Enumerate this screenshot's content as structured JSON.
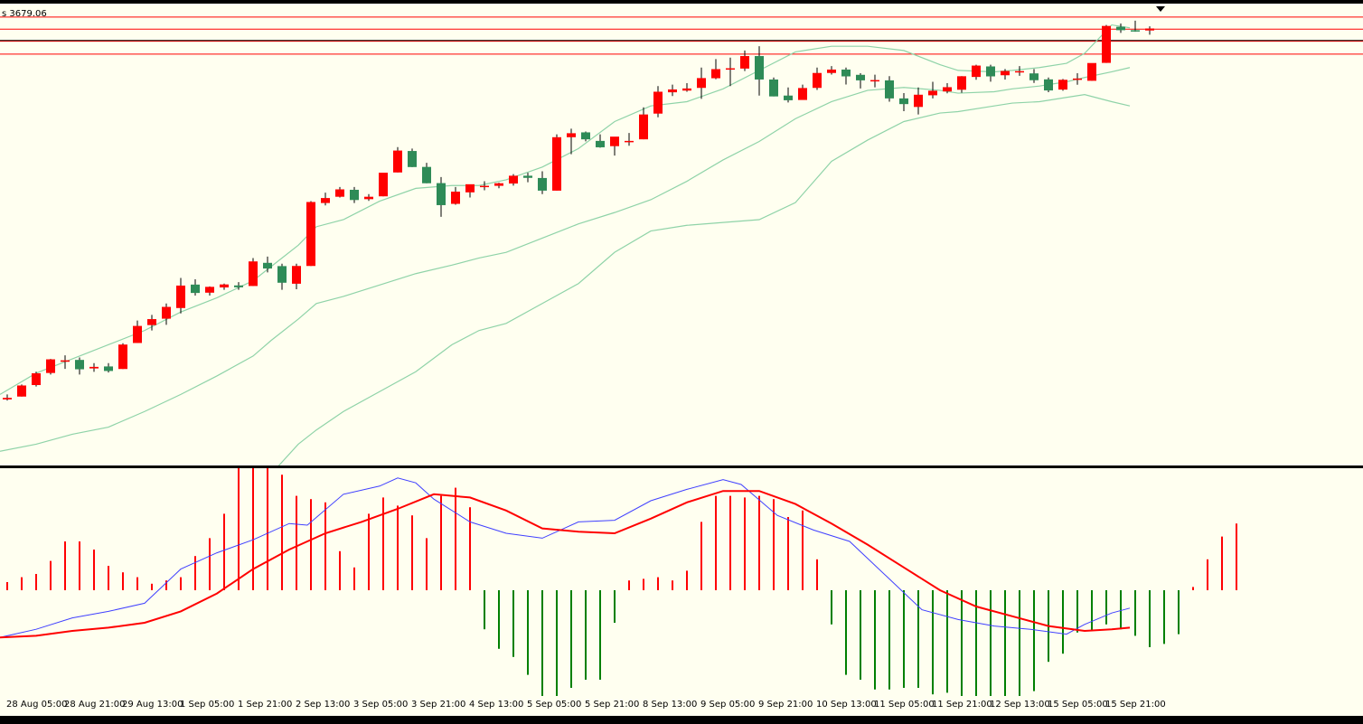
{
  "price_readout": "s 3679.06",
  "colors": {
    "background": "#fffff0",
    "bull_candle": "#ff0000",
    "bear_candle": "#2e8b57",
    "bollinger": "#8fd3a8",
    "level_lines": "#ff0000",
    "current_price_line": "#000000",
    "macd_line": "#4040ff",
    "signal_line": "#ff0000",
    "histogram_positive": "#ff0000",
    "histogram_negative": "#008000"
  },
  "icons": [
    "scroll-position-marker-icon"
  ],
  "time_axis": {
    "labels": [
      "28 Aug 05:00",
      "28 Aug 21:00",
      "29 Aug 13:00",
      "1 Sep 05:00",
      "1 Sep 21:00",
      "2 Sep 13:00",
      "3 Sep 05:00",
      "3 Sep 21:00",
      "4 Sep 13:00",
      "5 Sep 05:00",
      "5 Sep 21:00",
      "8 Sep 13:00",
      "9 Sep 05:00",
      "9 Sep 21:00",
      "10 Sep 13:00",
      "11 Sep 05:00",
      "11 Sep 21:00",
      "12 Sep 13:00",
      "15 Sep 05:00",
      "15 Sep 21:00"
    ]
  },
  "chart_data": {
    "type": "candlestick",
    "price_range": [
      3380,
      3705
    ],
    "horizontal_levels": [
      3695.5,
      3687.0,
      3678.5,
      3669.5
    ],
    "current_price": 3679.06,
    "candles": [
      [
        3426.5,
        3430,
        3427.6,
        3425.7
      ],
      [
        3428.5,
        3437,
        3436.3,
        3428.5
      ],
      [
        3436.6,
        3446,
        3444.9,
        3435.6
      ],
      [
        3445.1,
        3455,
        3454.7,
        3444
      ],
      [
        3453,
        3457.5,
        3454,
        3448
      ],
      [
        3454.3,
        3456,
        3447.7,
        3444
      ],
      [
        3448.3,
        3452,
        3449.4,
        3445.9
      ],
      [
        3449.7,
        3452,
        3446.5,
        3445.4
      ],
      [
        3447.9,
        3466,
        3465.1,
        3447.9
      ],
      [
        3466.2,
        3482,
        3478.2,
        3466.2
      ],
      [
        3478.8,
        3486,
        3483,
        3475
      ],
      [
        3483.3,
        3494,
        3491.6,
        3479
      ],
      [
        3490.8,
        3512,
        3506.6,
        3487
      ],
      [
        3507.3,
        3511,
        3501.4,
        3499.6
      ],
      [
        3501.6,
        3506,
        3505.7,
        3499.6
      ],
      [
        3505.3,
        3508,
        3507.4,
        3503.6
      ],
      [
        3506.7,
        3509,
        3505.4,
        3503.6
      ],
      [
        3506.3,
        3526,
        3523.6,
        3506.3
      ],
      [
        3522.6,
        3527,
        3518.6,
        3515.9
      ],
      [
        3520.3,
        3522,
        3508.6,
        3503.6
      ],
      [
        3507.9,
        3522,
        3520.4,
        3504
      ],
      [
        3520.4,
        3566,
        3565.4,
        3520.4
      ],
      [
        3564.7,
        3572,
        3568.2,
        3563
      ],
      [
        3569.1,
        3576,
        3574.3,
        3568.6
      ],
      [
        3574,
        3576,
        3566.8,
        3564.7
      ],
      [
        3567.4,
        3571,
        3569.1,
        3566.2
      ],
      [
        3569.4,
        3585,
        3586,
        3569.4
      ],
      [
        3586.2,
        3604,
        3601.6,
        3586.2
      ],
      [
        3601.3,
        3603,
        3590,
        3590
      ],
      [
        3590.1,
        3593,
        3578.6,
        3578.6
      ],
      [
        3578.7,
        3583,
        3563.2,
        3555
      ],
      [
        3564.1,
        3576,
        3572.7,
        3563.5
      ],
      [
        3572.2,
        3574,
        3577.9,
        3568.6
      ],
      [
        3576.1,
        3580,
        3576.8,
        3573.7
      ],
      [
        3576.8,
        3579,
        3578.6,
        3575.1
      ],
      [
        3578.4,
        3585,
        3583.9,
        3576.9
      ],
      [
        3583.9,
        3586,
        3582.4,
        3579.3
      ],
      [
        3582.3,
        3587,
        3573.4,
        3571
      ],
      [
        3573.4,
        3613,
        3611,
        3573.4
      ],
      [
        3611,
        3617,
        3613.8,
        3599
      ],
      [
        3614.4,
        3615,
        3609.5,
        3608.1
      ],
      [
        3608.4,
        3613,
        3603.9,
        3603.6
      ],
      [
        3604.7,
        3609,
        3611.4,
        3598.1
      ],
      [
        3608.4,
        3614,
        3608.4,
        3605
      ],
      [
        3609.5,
        3632,
        3627,
        3609.5
      ],
      [
        3627.6,
        3647,
        3643,
        3625
      ],
      [
        3642.6,
        3648,
        3644.6,
        3640
      ],
      [
        3643.8,
        3649,
        3645.3,
        3643
      ],
      [
        3645.7,
        3660,
        3652.6,
        3638
      ],
      [
        3652.5,
        3666,
        3658.9,
        3651.8
      ],
      [
        3658.8,
        3667,
        3659.5,
        3647
      ],
      [
        3659.3,
        3672,
        3668.1,
        3657.5
      ],
      [
        3668.1,
        3675,
        3651.6,
        3640.3
      ],
      [
        3651.6,
        3653,
        3639.7,
        3639.7
      ],
      [
        3640.3,
        3646,
        3637,
        3635.4
      ],
      [
        3637.2,
        3648,
        3645.6,
        3639.8
      ],
      [
        3645.7,
        3660,
        3656.2,
        3644.3
      ],
      [
        3656.2,
        3661,
        3658.6,
        3655.1
      ],
      [
        3658.6,
        3660,
        3653.8,
        3648.1
      ],
      [
        3654.9,
        3656,
        3651,
        3645.3
      ],
      [
        3651,
        3655,
        3651.2,
        3646.1
      ],
      [
        3651,
        3654,
        3638.3,
        3636
      ],
      [
        3638.3,
        3642,
        3634.3,
        3629.3
      ],
      [
        3632.3,
        3646,
        3640.9,
        3627
      ],
      [
        3640.5,
        3650,
        3643.7,
        3638.3
      ],
      [
        3643.2,
        3649,
        3646.2,
        3641.9
      ],
      [
        3644.4,
        3654,
        3653.9,
        3642.3
      ],
      [
        3653.4,
        3662,
        3661.4,
        3651.4
      ],
      [
        3660.8,
        3662,
        3653.8,
        3650.1
      ],
      [
        3654.6,
        3659,
        3657.6,
        3651.6
      ],
      [
        3656.7,
        3661,
        3657.5,
        3654.2
      ],
      [
        3655.9,
        3659,
        3651.1,
        3649.2
      ],
      [
        3651.7,
        3653,
        3643.9,
        3642.7
      ],
      [
        3644.5,
        3652,
        3651.4,
        3643.7
      ],
      [
        3651.5,
        3656,
        3652.3,
        3647.9
      ],
      [
        3650.7,
        3663,
        3663.2,
        3650.7
      ],
      [
        3663.3,
        3690,
        3689.3,
        3663.3
      ],
      [
        3688.7,
        3691,
        3686.3,
        3684.4
      ],
      [
        3686.3,
        3693,
        3686.1,
        3685.2
      ],
      [
        3686.1,
        3689,
        3687.5,
        3683.1
      ]
    ],
    "bollinger_bands": {
      "upper": [
        [
          0,
          3430
        ],
        [
          20,
          3445
        ],
        [
          40,
          3455
        ],
        [
          60,
          3465
        ],
        [
          80,
          3475
        ],
        [
          100,
          3488
        ],
        [
          120,
          3498
        ],
        [
          140,
          3510
        ],
        [
          150,
          3520
        ],
        [
          165,
          3535
        ],
        [
          175,
          3548
        ],
        [
          190,
          3553
        ],
        [
          210,
          3566
        ],
        [
          230,
          3575
        ],
        [
          250,
          3577
        ],
        [
          265,
          3577
        ],
        [
          280,
          3581
        ],
        [
          300,
          3590
        ],
        [
          320,
          3603
        ],
        [
          340,
          3622
        ],
        [
          360,
          3633
        ],
        [
          380,
          3636
        ],
        [
          400,
          3645
        ],
        [
          420,
          3658
        ],
        [
          440,
          3671
        ],
        [
          460,
          3675
        ],
        [
          480,
          3675
        ],
        [
          500,
          3672
        ],
        [
          520,
          3662
        ],
        [
          530,
          3658
        ],
        [
          550,
          3657
        ],
        [
          560,
          3658
        ],
        [
          575,
          3660
        ],
        [
          590,
          3663
        ],
        [
          600,
          3670
        ],
        [
          615,
          3690
        ],
        [
          625,
          3688
        ]
      ],
      "middle": [
        [
          0,
          3390
        ],
        [
          20,
          3395
        ],
        [
          40,
          3402
        ],
        [
          60,
          3407
        ],
        [
          80,
          3418
        ],
        [
          100,
          3430
        ],
        [
          120,
          3443
        ],
        [
          140,
          3457
        ],
        [
          150,
          3468
        ],
        [
          165,
          3483
        ],
        [
          175,
          3494
        ],
        [
          190,
          3499
        ],
        [
          210,
          3507
        ],
        [
          230,
          3515
        ],
        [
          250,
          3521
        ],
        [
          265,
          3526
        ],
        [
          280,
          3530
        ],
        [
          300,
          3540
        ],
        [
          320,
          3550
        ],
        [
          340,
          3558
        ],
        [
          360,
          3567
        ],
        [
          380,
          3580
        ],
        [
          400,
          3595
        ],
        [
          420,
          3608
        ],
        [
          440,
          3624
        ],
        [
          460,
          3636
        ],
        [
          480,
          3644
        ],
        [
          500,
          3646
        ],
        [
          520,
          3644
        ],
        [
          530,
          3642
        ],
        [
          550,
          3643
        ],
        [
          560,
          3645
        ],
        [
          575,
          3647
        ],
        [
          590,
          3650
        ],
        [
          600,
          3653
        ],
        [
          615,
          3657
        ],
        [
          625,
          3660
        ]
      ],
      "lower": [
        [
          0,
          3364
        ],
        [
          20,
          3367
        ],
        [
          40,
          3369
        ],
        [
          60,
          3368
        ],
        [
          80,
          3370
        ],
        [
          100,
          3363
        ],
        [
          120,
          3365
        ],
        [
          140,
          3370
        ],
        [
          150,
          3374
        ],
        [
          165,
          3395
        ],
        [
          175,
          3405
        ],
        [
          190,
          3418
        ],
        [
          210,
          3432
        ],
        [
          230,
          3446
        ],
        [
          250,
          3465
        ],
        [
          265,
          3475
        ],
        [
          280,
          3480
        ],
        [
          300,
          3494
        ],
        [
          320,
          3508
        ],
        [
          340,
          3530
        ],
        [
          360,
          3545
        ],
        [
          380,
          3549
        ],
        [
          400,
          3551
        ],
        [
          420,
          3553
        ],
        [
          440,
          3565
        ],
        [
          460,
          3594
        ],
        [
          480,
          3609
        ],
        [
          500,
          3622
        ],
        [
          520,
          3628
        ],
        [
          530,
          3629
        ],
        [
          550,
          3633
        ],
        [
          560,
          3635
        ],
        [
          575,
          3636
        ],
        [
          590,
          3639
        ],
        [
          600,
          3641
        ],
        [
          615,
          3636
        ],
        [
          625,
          3633
        ]
      ]
    },
    "oscillator": {
      "range": [
        -6.5,
        7.5
      ],
      "macd": [
        [
          0,
          -2.9
        ],
        [
          20,
          -2.4
        ],
        [
          40,
          -1.7
        ],
        [
          60,
          -1.3
        ],
        [
          80,
          -0.8
        ],
        [
          100,
          1.3
        ],
        [
          120,
          2.3
        ],
        [
          140,
          3.1
        ],
        [
          160,
          4.1
        ],
        [
          170,
          4.0
        ],
        [
          190,
          5.9
        ],
        [
          210,
          6.4
        ],
        [
          220,
          6.9
        ],
        [
          230,
          6.6
        ],
        [
          240,
          5.6
        ],
        [
          260,
          4.2
        ],
        [
          280,
          3.5
        ],
        [
          300,
          3.2
        ],
        [
          310,
          3.7
        ],
        [
          320,
          4.2
        ],
        [
          340,
          4.3
        ],
        [
          360,
          5.5
        ],
        [
          380,
          6.2
        ],
        [
          400,
          6.8
        ],
        [
          410,
          6.5
        ],
        [
          430,
          4.6
        ],
        [
          450,
          3.7
        ],
        [
          470,
          3.0
        ],
        [
          490,
          0.9
        ],
        [
          510,
          -1.2
        ],
        [
          530,
          -1.8
        ],
        [
          550,
          -2.2
        ],
        [
          570,
          -2.4
        ],
        [
          590,
          -2.7
        ],
        [
          600,
          -2.1
        ],
        [
          615,
          -1.4
        ],
        [
          625,
          -1.1
        ]
      ],
      "signal": [
        [
          0,
          -2.9
        ],
        [
          20,
          -2.8
        ],
        [
          40,
          -2.5
        ],
        [
          60,
          -2.3
        ],
        [
          80,
          -2.0
        ],
        [
          100,
          -1.3
        ],
        [
          120,
          -0.2
        ],
        [
          140,
          1.3
        ],
        [
          160,
          2.5
        ],
        [
          180,
          3.5
        ],
        [
          200,
          4.2
        ],
        [
          220,
          5.0
        ],
        [
          240,
          5.9
        ],
        [
          260,
          5.7
        ],
        [
          280,
          4.9
        ],
        [
          300,
          3.8
        ],
        [
          320,
          3.6
        ],
        [
          340,
          3.5
        ],
        [
          360,
          4.4
        ],
        [
          380,
          5.4
        ],
        [
          400,
          6.1
        ],
        [
          420,
          6.1
        ],
        [
          440,
          5.3
        ],
        [
          460,
          4.1
        ],
        [
          480,
          2.8
        ],
        [
          500,
          1.4
        ],
        [
          520,
          0.0
        ],
        [
          540,
          -1.0
        ],
        [
          560,
          -1.6
        ],
        [
          580,
          -2.2
        ],
        [
          600,
          -2.5
        ],
        [
          615,
          -2.4
        ],
        [
          625,
          -2.3
        ]
      ],
      "histogram": [
        0.5,
        0.8,
        1.0,
        1.8,
        3.0,
        3.0,
        2.5,
        1.5,
        1.1,
        0.8,
        0.4,
        0.6,
        0.8,
        2.1,
        3.2,
        4.7,
        7.7,
        7.8,
        7.7,
        7.1,
        5.8,
        5.6,
        5.4,
        2.4,
        1.4,
        4.7,
        5.7,
        5.2,
        4.6,
        3.2,
        5.8,
        6.3,
        5.1,
        -2.4,
        -3.6,
        -4.1,
        -5.2,
        -6.6,
        -6.5,
        -6.0,
        -5.5,
        -5.5,
        -2.0,
        0.6,
        0.7,
        0.8,
        0.6,
        1.2,
        4.2,
        5.8,
        5.8,
        5.7,
        5.8,
        5.6,
        4.5,
        4.9,
        1.9,
        -2.1,
        -5.2,
        -5.5,
        -6.1,
        -6.1,
        -6.0,
        -6.0,
        -6.4,
        -6.3,
        -7.0,
        -8.1,
        -8.4,
        -8.4,
        -7.8,
        -6.2,
        -4.4,
        -3.9,
        -2.6,
        -2.5,
        -2.1,
        -2.4,
        -2.8,
        -3.5,
        -3.3,
        -2.7,
        0.2,
        1.9,
        3.3,
        4.1
      ]
    }
  }
}
